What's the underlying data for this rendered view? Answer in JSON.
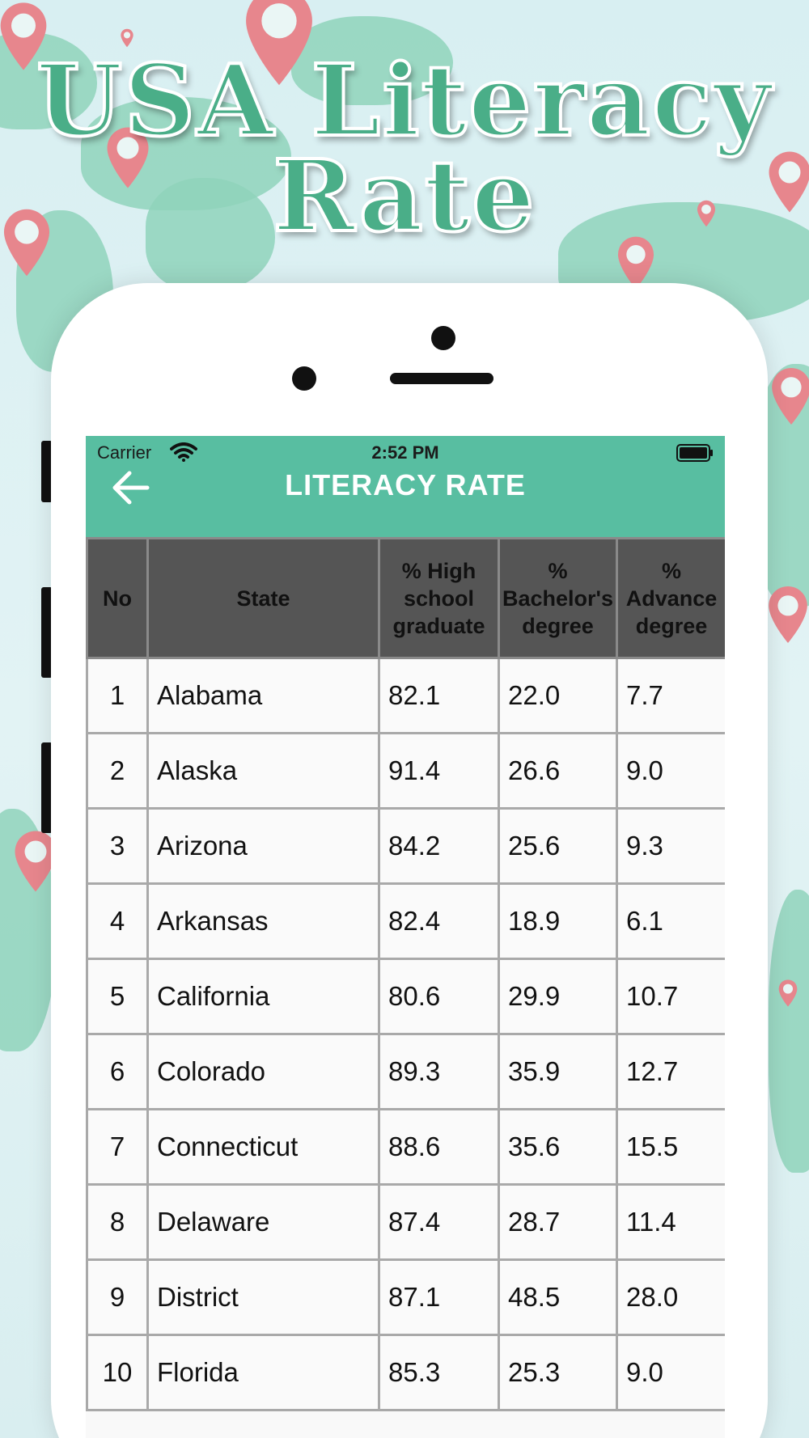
{
  "promo": {
    "title_line1": "USA Literacy",
    "title_line2": "Rate"
  },
  "status_bar": {
    "carrier": "Carrier",
    "time": "2:52 PM",
    "wifi_icon": "wifi-icon",
    "battery_icon": "battery-full-icon"
  },
  "navbar": {
    "title": "LITERACY RATE",
    "back_icon": "arrow-left-icon",
    "background": "#58bea1"
  },
  "table": {
    "headers": [
      "No",
      "State",
      "% High school graduate",
      "% Bachelor's degree",
      "% Advance degree"
    ],
    "rows": [
      {
        "no": "1",
        "state": "Alabama",
        "hs": "82.1",
        "ba": "22.0",
        "ad": "7.7"
      },
      {
        "no": "2",
        "state": "Alaska",
        "hs": "91.4",
        "ba": "26.6",
        "ad": "9.0"
      },
      {
        "no": "3",
        "state": "Arizona",
        "hs": "84.2",
        "ba": "25.6",
        "ad": "9.3"
      },
      {
        "no": "4",
        "state": "Arkansas",
        "hs": "82.4",
        "ba": "18.9",
        "ad": "6.1"
      },
      {
        "no": "5",
        "state": "California",
        "hs": "80.6",
        "ba": "29.9",
        "ad": "10.7"
      },
      {
        "no": "6",
        "state": "Colorado",
        "hs": "89.3",
        "ba": "35.9",
        "ad": "12.7"
      },
      {
        "no": "7",
        "state": "Connecticut",
        "hs": "88.6",
        "ba": "35.6",
        "ad": "15.5"
      },
      {
        "no": "8",
        "state": "Delaware",
        "hs": "87.4",
        "ba": "28.7",
        "ad": "11.4"
      },
      {
        "no": "9",
        "state": "District",
        "hs": "87.1",
        "ba": "48.5",
        "ad": "28.0"
      },
      {
        "no": "10",
        "state": "Florida",
        "hs": "85.3",
        "ba": "25.3",
        "ad": "9.0"
      }
    ]
  },
  "colors": {
    "accent": "#58bea1",
    "title_green": "#4aae88",
    "header_bg": "#555555"
  }
}
